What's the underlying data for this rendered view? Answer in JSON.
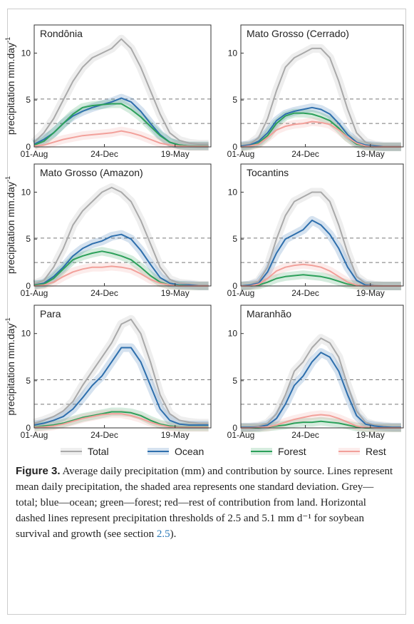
{
  "chart_data": [
    {
      "type": "line",
      "title": "Rondônia",
      "ylabel": {
        "text": "precipitation mm.day",
        "sup": "-1"
      },
      "x": [
        0,
        20,
        40,
        60,
        80,
        100,
        120,
        140,
        160,
        180,
        200,
        220,
        240,
        260,
        280,
        300,
        320,
        340,
        360
      ],
      "xlim": [
        0,
        365
      ],
      "xticks": [
        {
          "value": 0,
          "label": "01-Aug"
        },
        {
          "value": 145,
          "label": "24-Dec"
        },
        {
          "value": 291,
          "label": "19-May"
        }
      ],
      "ylim": [
        0,
        13
      ],
      "yticks": [
        0,
        5,
        10
      ],
      "thresholds": [
        2.5,
        5.1
      ],
      "series": [
        {
          "name": "Total",
          "color": "#a9a9a9",
          "values": [
            0.5,
            1.5,
            3,
            5,
            7,
            8.5,
            9.5,
            10,
            10.5,
            11.5,
            10.5,
            8.5,
            6,
            3.5,
            1.5,
            0.7,
            0.4,
            0.3,
            0.3
          ]
        },
        {
          "name": "Ocean",
          "color": "#2e6fad",
          "values": [
            0.3,
            0.8,
            1.5,
            2.5,
            3.3,
            3.8,
            4.2,
            4.5,
            4.8,
            5.2,
            4.8,
            3.8,
            2.5,
            1.3,
            0.5,
            0.2,
            0.1,
            0.1,
            0.1
          ]
        },
        {
          "name": "Forest",
          "color": "#2ca05a",
          "values": [
            0.2,
            0.6,
            1.5,
            2.5,
            3.5,
            4.2,
            4.4,
            4.5,
            4.6,
            4.6,
            4,
            3.2,
            2.2,
            1.2,
            0.5,
            0.2,
            0.1,
            0.1,
            0.1
          ]
        },
        {
          "name": "Rest",
          "color": "#f2a09a",
          "values": [
            0.1,
            0.2,
            0.5,
            0.8,
            1,
            1.2,
            1.3,
            1.4,
            1.5,
            1.7,
            1.5,
            1.2,
            0.8,
            0.4,
            0.2,
            0.1,
            0.05,
            0.05,
            0.05
          ]
        }
      ]
    },
    {
      "type": "line",
      "title": "Mato Grosso (Cerrado)",
      "x": [
        0,
        20,
        40,
        60,
        80,
        100,
        120,
        140,
        160,
        180,
        200,
        220,
        240,
        260,
        280,
        300,
        320,
        340,
        360
      ],
      "xlim": [
        0,
        365
      ],
      "xticks": [
        {
          "value": 0,
          "label": "01-Aug"
        },
        {
          "value": 145,
          "label": "24-Dec"
        },
        {
          "value": 291,
          "label": "19-May"
        }
      ],
      "ylim": [
        0,
        13
      ],
      "yticks": [
        0,
        5,
        10
      ],
      "thresholds": [
        2.5,
        5.1
      ],
      "series": [
        {
          "name": "Total",
          "color": "#a9a9a9",
          "values": [
            0.1,
            0.3,
            1,
            3,
            6,
            8.5,
            9.5,
            10,
            10.5,
            10.5,
            9.5,
            7,
            4,
            1.5,
            0.5,
            0.2,
            0.1,
            0.1,
            0.1
          ]
        },
        {
          "name": "Ocean",
          "color": "#2e6fad",
          "values": [
            0.1,
            0.2,
            0.6,
            1.5,
            2.8,
            3.5,
            3.8,
            4,
            4.2,
            4,
            3.5,
            2.5,
            1.3,
            0.5,
            0.2,
            0.1,
            0,
            0,
            0
          ]
        },
        {
          "name": "Forest",
          "color": "#2ca05a",
          "values": [
            0,
            0.1,
            0.4,
            1.2,
            2.5,
            3.3,
            3.6,
            3.6,
            3.5,
            3.2,
            2.8,
            2,
            1,
            0.3,
            0.1,
            0,
            0,
            0,
            0
          ]
        },
        {
          "name": "Rest",
          "color": "#f2a09a",
          "values": [
            0,
            0.1,
            0.3,
            1,
            1.8,
            2.2,
            2.4,
            2.5,
            2.7,
            2.6,
            2.4,
            1.8,
            1,
            0.4,
            0.1,
            0,
            0,
            0,
            0
          ]
        }
      ]
    },
    {
      "type": "line",
      "title": "Mato Grosso (Amazon)",
      "ylabel": {
        "text": "precipitation mm.day",
        "sup": "-1"
      },
      "x": [
        0,
        20,
        40,
        60,
        80,
        100,
        120,
        140,
        160,
        180,
        200,
        220,
        240,
        260,
        280,
        300,
        320,
        340,
        360
      ],
      "xlim": [
        0,
        365
      ],
      "xticks": [
        {
          "value": 0,
          "label": "01-Aug"
        },
        {
          "value": 145,
          "label": "24-Dec"
        },
        {
          "value": 291,
          "label": "19-May"
        }
      ],
      "ylim": [
        0,
        13
      ],
      "yticks": [
        0,
        5,
        10
      ],
      "thresholds": [
        2.5,
        5.1
      ],
      "series": [
        {
          "name": "Total",
          "color": "#a9a9a9",
          "values": [
            0.2,
            0.6,
            2,
            4,
            6.5,
            8,
            9,
            10,
            10.5,
            10,
            9,
            7,
            4.5,
            2,
            0.7,
            0.3,
            0.2,
            0.1,
            0.1
          ]
        },
        {
          "name": "Ocean",
          "color": "#2e6fad",
          "values": [
            0.1,
            0.3,
            1,
            2,
            3.2,
            4,
            4.5,
            4.8,
            5.3,
            5.5,
            5,
            3.8,
            2.3,
            0.9,
            0.3,
            0.1,
            0.1,
            0,
            0
          ]
        },
        {
          "name": "Forest",
          "color": "#2ca05a",
          "values": [
            0.1,
            0.2,
            0.8,
            1.8,
            2.8,
            3.2,
            3.5,
            3.7,
            3.5,
            3.2,
            2.8,
            2,
            1.1,
            0.4,
            0.1,
            0.05,
            0,
            0,
            0
          ]
        },
        {
          "name": "Rest",
          "color": "#f2a09a",
          "values": [
            0,
            0.1,
            0.4,
            1,
            1.5,
            1.8,
            2,
            2,
            2.1,
            2,
            1.8,
            1.3,
            0.7,
            0.3,
            0.1,
            0,
            0,
            0,
            0
          ]
        }
      ]
    },
    {
      "type": "line",
      "title": "Tocantins",
      "x": [
        0,
        20,
        40,
        60,
        80,
        100,
        120,
        140,
        160,
        180,
        200,
        220,
        240,
        260,
        280,
        300,
        320,
        340,
        360
      ],
      "xlim": [
        0,
        365
      ],
      "xticks": [
        {
          "value": 0,
          "label": "01-Aug"
        },
        {
          "value": 145,
          "label": "24-Dec"
        },
        {
          "value": 291,
          "label": "19-May"
        }
      ],
      "ylim": [
        0,
        13
      ],
      "yticks": [
        0,
        5,
        10
      ],
      "thresholds": [
        2.5,
        5.1
      ],
      "series": [
        {
          "name": "Total",
          "color": "#a9a9a9",
          "values": [
            0,
            0.1,
            0.5,
            2,
            5,
            7.5,
            9,
            9.5,
            10,
            10,
            9,
            6.5,
            3.5,
            1,
            0.3,
            0.1,
            0,
            0,
            0
          ]
        },
        {
          "name": "Ocean",
          "color": "#2e6fad",
          "values": [
            0,
            0.1,
            0.3,
            1.5,
            3.5,
            5,
            5.5,
            6,
            7,
            6.5,
            5.5,
            4,
            2,
            0.6,
            0.1,
            0,
            0,
            0,
            0
          ]
        },
        {
          "name": "Forest",
          "color": "#2ca05a",
          "values": [
            0,
            0,
            0.1,
            0.4,
            0.8,
            1,
            1.1,
            1.2,
            1.1,
            1,
            0.8,
            0.5,
            0.2,
            0.1,
            0,
            0,
            0,
            0,
            0
          ]
        },
        {
          "name": "Rest",
          "color": "#f2a09a",
          "values": [
            0,
            0,
            0.2,
            0.8,
            1.6,
            2,
            2.2,
            2.3,
            2.2,
            2,
            1.6,
            1,
            0.4,
            0.1,
            0,
            0,
            0,
            0,
            0
          ]
        }
      ]
    },
    {
      "type": "line",
      "title": "Para",
      "ylabel": {
        "text": "precipitation mm.day",
        "sup": "-1"
      },
      "x": [
        0,
        20,
        40,
        60,
        80,
        100,
        120,
        140,
        160,
        180,
        200,
        220,
        240,
        260,
        280,
        300,
        320,
        340,
        360
      ],
      "xlim": [
        0,
        365
      ],
      "xticks": [
        {
          "value": 0,
          "label": "01-Aug"
        },
        {
          "value": 145,
          "label": "24-Dec"
        },
        {
          "value": 291,
          "label": "19-May"
        }
      ],
      "ylim": [
        0,
        13
      ],
      "yticks": [
        0,
        5,
        10
      ],
      "thresholds": [
        2.5,
        5.1
      ],
      "series": [
        {
          "name": "Total",
          "color": "#a9a9a9",
          "values": [
            0.5,
            0.8,
            1.2,
            1.8,
            2.8,
            4.5,
            6,
            7.5,
            9,
            11,
            11.5,
            10,
            7,
            3.5,
            1.5,
            0.8,
            0.6,
            0.5,
            0.5
          ]
        },
        {
          "name": "Ocean",
          "color": "#2e6fad",
          "values": [
            0.3,
            0.5,
            0.8,
            1.2,
            2,
            3.2,
            4.5,
            5.5,
            7,
            8.5,
            8.5,
            7,
            4.5,
            2,
            0.8,
            0.4,
            0.3,
            0.3,
            0.3
          ]
        },
        {
          "name": "Forest",
          "color": "#2ca05a",
          "values": [
            0.1,
            0.2,
            0.3,
            0.5,
            0.8,
            1.1,
            1.3,
            1.5,
            1.7,
            1.7,
            1.6,
            1.3,
            0.8,
            0.4,
            0.2,
            0.1,
            0.1,
            0.1,
            0.1
          ]
        },
        {
          "name": "Rest",
          "color": "#f2a09a",
          "values": [
            0.05,
            0.1,
            0.2,
            0.4,
            0.7,
            1,
            1.2,
            1.4,
            1.5,
            1.5,
            1.3,
            1,
            0.6,
            0.3,
            0.1,
            0.05,
            0.05,
            0.05,
            0.05
          ]
        }
      ]
    },
    {
      "type": "line",
      "title": "Maranhão",
      "x": [
        0,
        20,
        40,
        60,
        80,
        100,
        120,
        140,
        160,
        180,
        200,
        220,
        240,
        260,
        280,
        300,
        320,
        340,
        360
      ],
      "xlim": [
        0,
        365
      ],
      "xticks": [
        {
          "value": 0,
          "label": "01-Aug"
        },
        {
          "value": 145,
          "label": "24-Dec"
        },
        {
          "value": 291,
          "label": "19-May"
        }
      ],
      "ylim": [
        0,
        13
      ],
      "yticks": [
        0,
        5,
        10
      ],
      "thresholds": [
        2.5,
        5.1
      ],
      "series": [
        {
          "name": "Total",
          "color": "#a9a9a9",
          "values": [
            0.1,
            0.1,
            0.2,
            0.5,
            1.5,
            3.5,
            6,
            7,
            8.5,
            9.5,
            9,
            7.5,
            4.5,
            1.8,
            0.6,
            0.3,
            0.2,
            0.1,
            0.1
          ]
        },
        {
          "name": "Ocean",
          "color": "#2e6fad",
          "values": [
            0.05,
            0.05,
            0.1,
            0.3,
            1,
            2.5,
            4.5,
            5.5,
            7,
            8,
            7.5,
            6,
            3.5,
            1.3,
            0.4,
            0.2,
            0.1,
            0.05,
            0.05
          ]
        },
        {
          "name": "Forest",
          "color": "#2ca05a",
          "values": [
            0,
            0,
            0,
            0.1,
            0.2,
            0.3,
            0.5,
            0.6,
            0.6,
            0.7,
            0.6,
            0.5,
            0.3,
            0.1,
            0,
            0,
            0,
            0,
            0
          ]
        },
        {
          "name": "Rest",
          "color": "#f2a09a",
          "values": [
            0,
            0,
            0.05,
            0.1,
            0.3,
            0.6,
            0.9,
            1.1,
            1.3,
            1.4,
            1.3,
            1,
            0.6,
            0.2,
            0.05,
            0,
            0,
            0,
            0
          ]
        }
      ]
    }
  ],
  "caption": {
    "label": "Figure 3.",
    "text": "Average daily precipitation (mm) and contribution by source. Lines represent mean daily precipitation, the shaded area represents one standard deviation. Grey—total; blue—ocean; green—forest; red—rest of contribution from land. Horizontal dashed lines represent precipitation thresholds of 2.5 and 5.1 mm d⁻¹ for soybean survival and growth (see section ",
    "link": "2.5",
    "end": ")."
  }
}
